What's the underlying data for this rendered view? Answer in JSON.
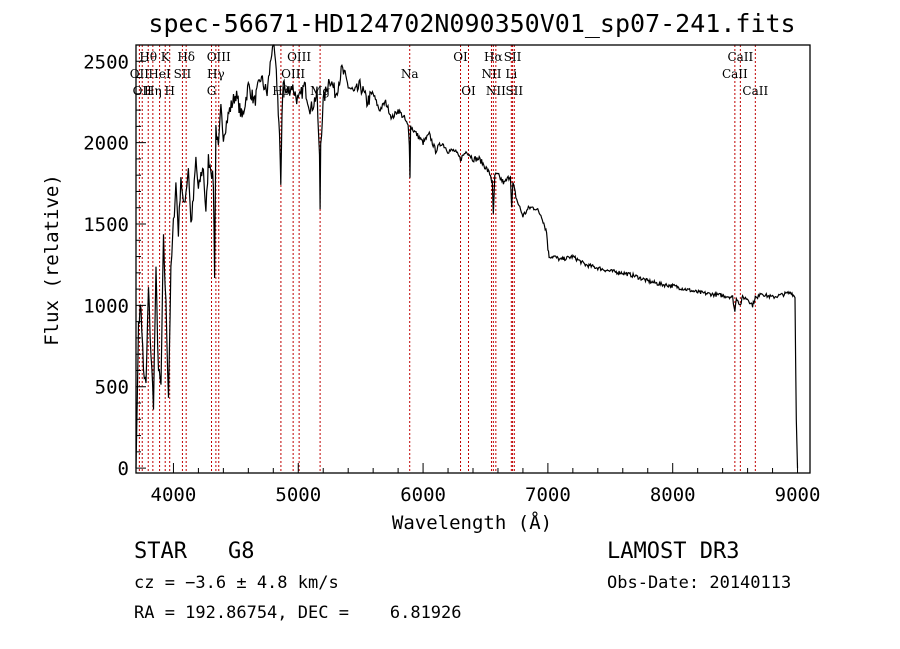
{
  "chart_data": {
    "type": "line",
    "title": "spec-56671-HD124702N090350V01_sp07-241.fits",
    "xlabel": "Wavelength (Å)",
    "ylabel": "Flux (relative)",
    "xlim": [
      3700,
      9100
    ],
    "ylim": [
      -30,
      2600
    ],
    "xticks": [
      4000,
      5000,
      6000,
      7000,
      8000,
      9000
    ],
    "yticks": [
      0,
      500,
      1000,
      1500,
      2000,
      2500
    ],
    "series": [
      {
        "name": "flux",
        "x": [
          3700,
          3710,
          3720,
          3740,
          3760,
          3780,
          3800,
          3820,
          3840,
          3860,
          3880,
          3900,
          3920,
          3940,
          3960,
          3980,
          4000,
          4020,
          4040,
          4060,
          4080,
          4100,
          4120,
          4140,
          4160,
          4180,
          4200,
          4220,
          4240,
          4260,
          4280,
          4300,
          4320,
          4330,
          4340,
          4360,
          4380,
          4400,
          4450,
          4500,
          4550,
          4600,
          4650,
          4700,
          4750,
          4800,
          4830,
          4840,
          4850,
          4860,
          4870,
          4880,
          4900,
          4950,
          5000,
          5050,
          5100,
          5150,
          5170,
          5175,
          5180,
          5200,
          5250,
          5300,
          5350,
          5400,
          5450,
          5500,
          5550,
          5600,
          5650,
          5700,
          5750,
          5800,
          5850,
          5880,
          5890,
          5895,
          5900,
          5950,
          6000,
          6050,
          6100,
          6150,
          6200,
          6250,
          6300,
          6350,
          6400,
          6450,
          6500,
          6540,
          6555,
          6563,
          6575,
          6600,
          6650,
          6700,
          6710,
          6720,
          6750,
          6800,
          6850,
          6900,
          6950,
          6990,
          7000,
          7010,
          7050,
          7100,
          7200,
          7300,
          7400,
          7500,
          7600,
          7700,
          7800,
          7900,
          8000,
          8100,
          8200,
          8300,
          8400,
          8450,
          8480,
          8498,
          8510,
          8542,
          8560,
          8600,
          8640,
          8662,
          8680,
          8700,
          8750,
          8800,
          8850,
          8900,
          8950,
          8980,
          8990,
          9000
        ],
        "values": [
          0,
          400,
          900,
          1000,
          600,
          500,
          1100,
          700,
          400,
          1200,
          600,
          500,
          1400,
          1000,
          450,
          1200,
          1500,
          1750,
          1450,
          1800,
          1600,
          1700,
          1850,
          1500,
          1650,
          1900,
          1700,
          1800,
          1850,
          1550,
          1900,
          1850,
          1750,
          1200,
          2100,
          1950,
          2200,
          2050,
          2200,
          2300,
          2150,
          2350,
          2250,
          2400,
          2300,
          2650,
          2350,
          2200,
          2050,
          1700,
          2200,
          2400,
          2300,
          2350,
          2250,
          2350,
          2200,
          2300,
          1900,
          1600,
          2000,
          2250,
          2400,
          2300,
          2450,
          2350,
          2300,
          2350,
          2250,
          2300,
          2200,
          2250,
          2150,
          2200,
          2150,
          2100,
          2000,
          1800,
          2100,
          2050,
          2000,
          2050,
          1950,
          2000,
          1950,
          1950,
          1900,
          1950,
          1900,
          1900,
          1850,
          1800,
          1750,
          1550,
          1800,
          1800,
          1750,
          1800,
          1600,
          1750,
          1650,
          1550,
          1600,
          1600,
          1550,
          1450,
          1350,
          1300,
          1300,
          1280,
          1300,
          1250,
          1230,
          1210,
          1200,
          1180,
          1150,
          1130,
          1120,
          1100,
          1080,
          1070,
          1060,
          1055,
          1050,
          960,
          1050,
          1000,
          1050,
          1040,
          1000,
          1050,
          1040,
          1080,
          1060,
          1050,
          1060,
          1070,
          1080,
          1050,
          300,
          0
        ]
      }
    ],
    "annotations": [
      {
        "wavelength": 3727,
        "label": "OII",
        "row": 1
      },
      {
        "wavelength": 3750,
        "label": "OII",
        "row": 2
      },
      {
        "wavelength": 3798,
        "label": "Hθ",
        "row": 0
      },
      {
        "wavelength": 3835,
        "label": "Hη",
        "row": 2
      },
      {
        "wavelength": 3889,
        "label": "HeI",
        "row": 1
      },
      {
        "wavelength": 3934,
        "label": "K",
        "row": 0
      },
      {
        "wavelength": 3970,
        "label": "H",
        "row": 2
      },
      {
        "wavelength": 4072,
        "label": "SII",
        "row": 1
      },
      {
        "wavelength": 4102,
        "label": "Hδ",
        "row": 0
      },
      {
        "wavelength": 4305,
        "label": "G",
        "row": 2
      },
      {
        "wavelength": 4340,
        "label": "Hγ",
        "row": 1
      },
      {
        "wavelength": 4363,
        "label": "OIII",
        "row": 0
      },
      {
        "wavelength": 4861,
        "label": "Hβ",
        "row": 2
      },
      {
        "wavelength": 4959,
        "label": "OIII",
        "row": 1
      },
      {
        "wavelength": 5007,
        "label": "OIII",
        "row": 0
      },
      {
        "wavelength": 5175,
        "label": "Mg",
        "row": 2
      },
      {
        "wavelength": 5893,
        "label": "Na",
        "row": 1
      },
      {
        "wavelength": 6300,
        "label": "OI",
        "row": 0
      },
      {
        "wavelength": 6364,
        "label": "OI",
        "row": 2
      },
      {
        "wavelength": 6548,
        "label": "NII",
        "row": 1
      },
      {
        "wavelength": 6563,
        "label": "Hα",
        "row": 0
      },
      {
        "wavelength": 6583,
        "label": "NII",
        "row": 2
      },
      {
        "wavelength": 6707,
        "label": "Li",
        "row": 1
      },
      {
        "wavelength": 6717,
        "label": "SII",
        "row": 0
      },
      {
        "wavelength": 6731,
        "label": "SII",
        "row": 2
      },
      {
        "wavelength": 8498,
        "label": "CaII",
        "row": 1
      },
      {
        "wavelength": 8542,
        "label": "CaII",
        "row": 0
      },
      {
        "wavelength": 8662,
        "label": "CaII",
        "row": 2
      }
    ],
    "colors": {
      "axis": "#000000",
      "series": "#000000",
      "marker_lines": "#c00000"
    }
  },
  "info": {
    "object_class": "STAR",
    "subclass": "G8",
    "survey": "LAMOST DR3",
    "cz": "cz = −3.6 ± 4.8 km/s",
    "obs_date": "Obs-Date: 20140113",
    "coords": "RA = 192.86754, DEC =    6.81926"
  }
}
